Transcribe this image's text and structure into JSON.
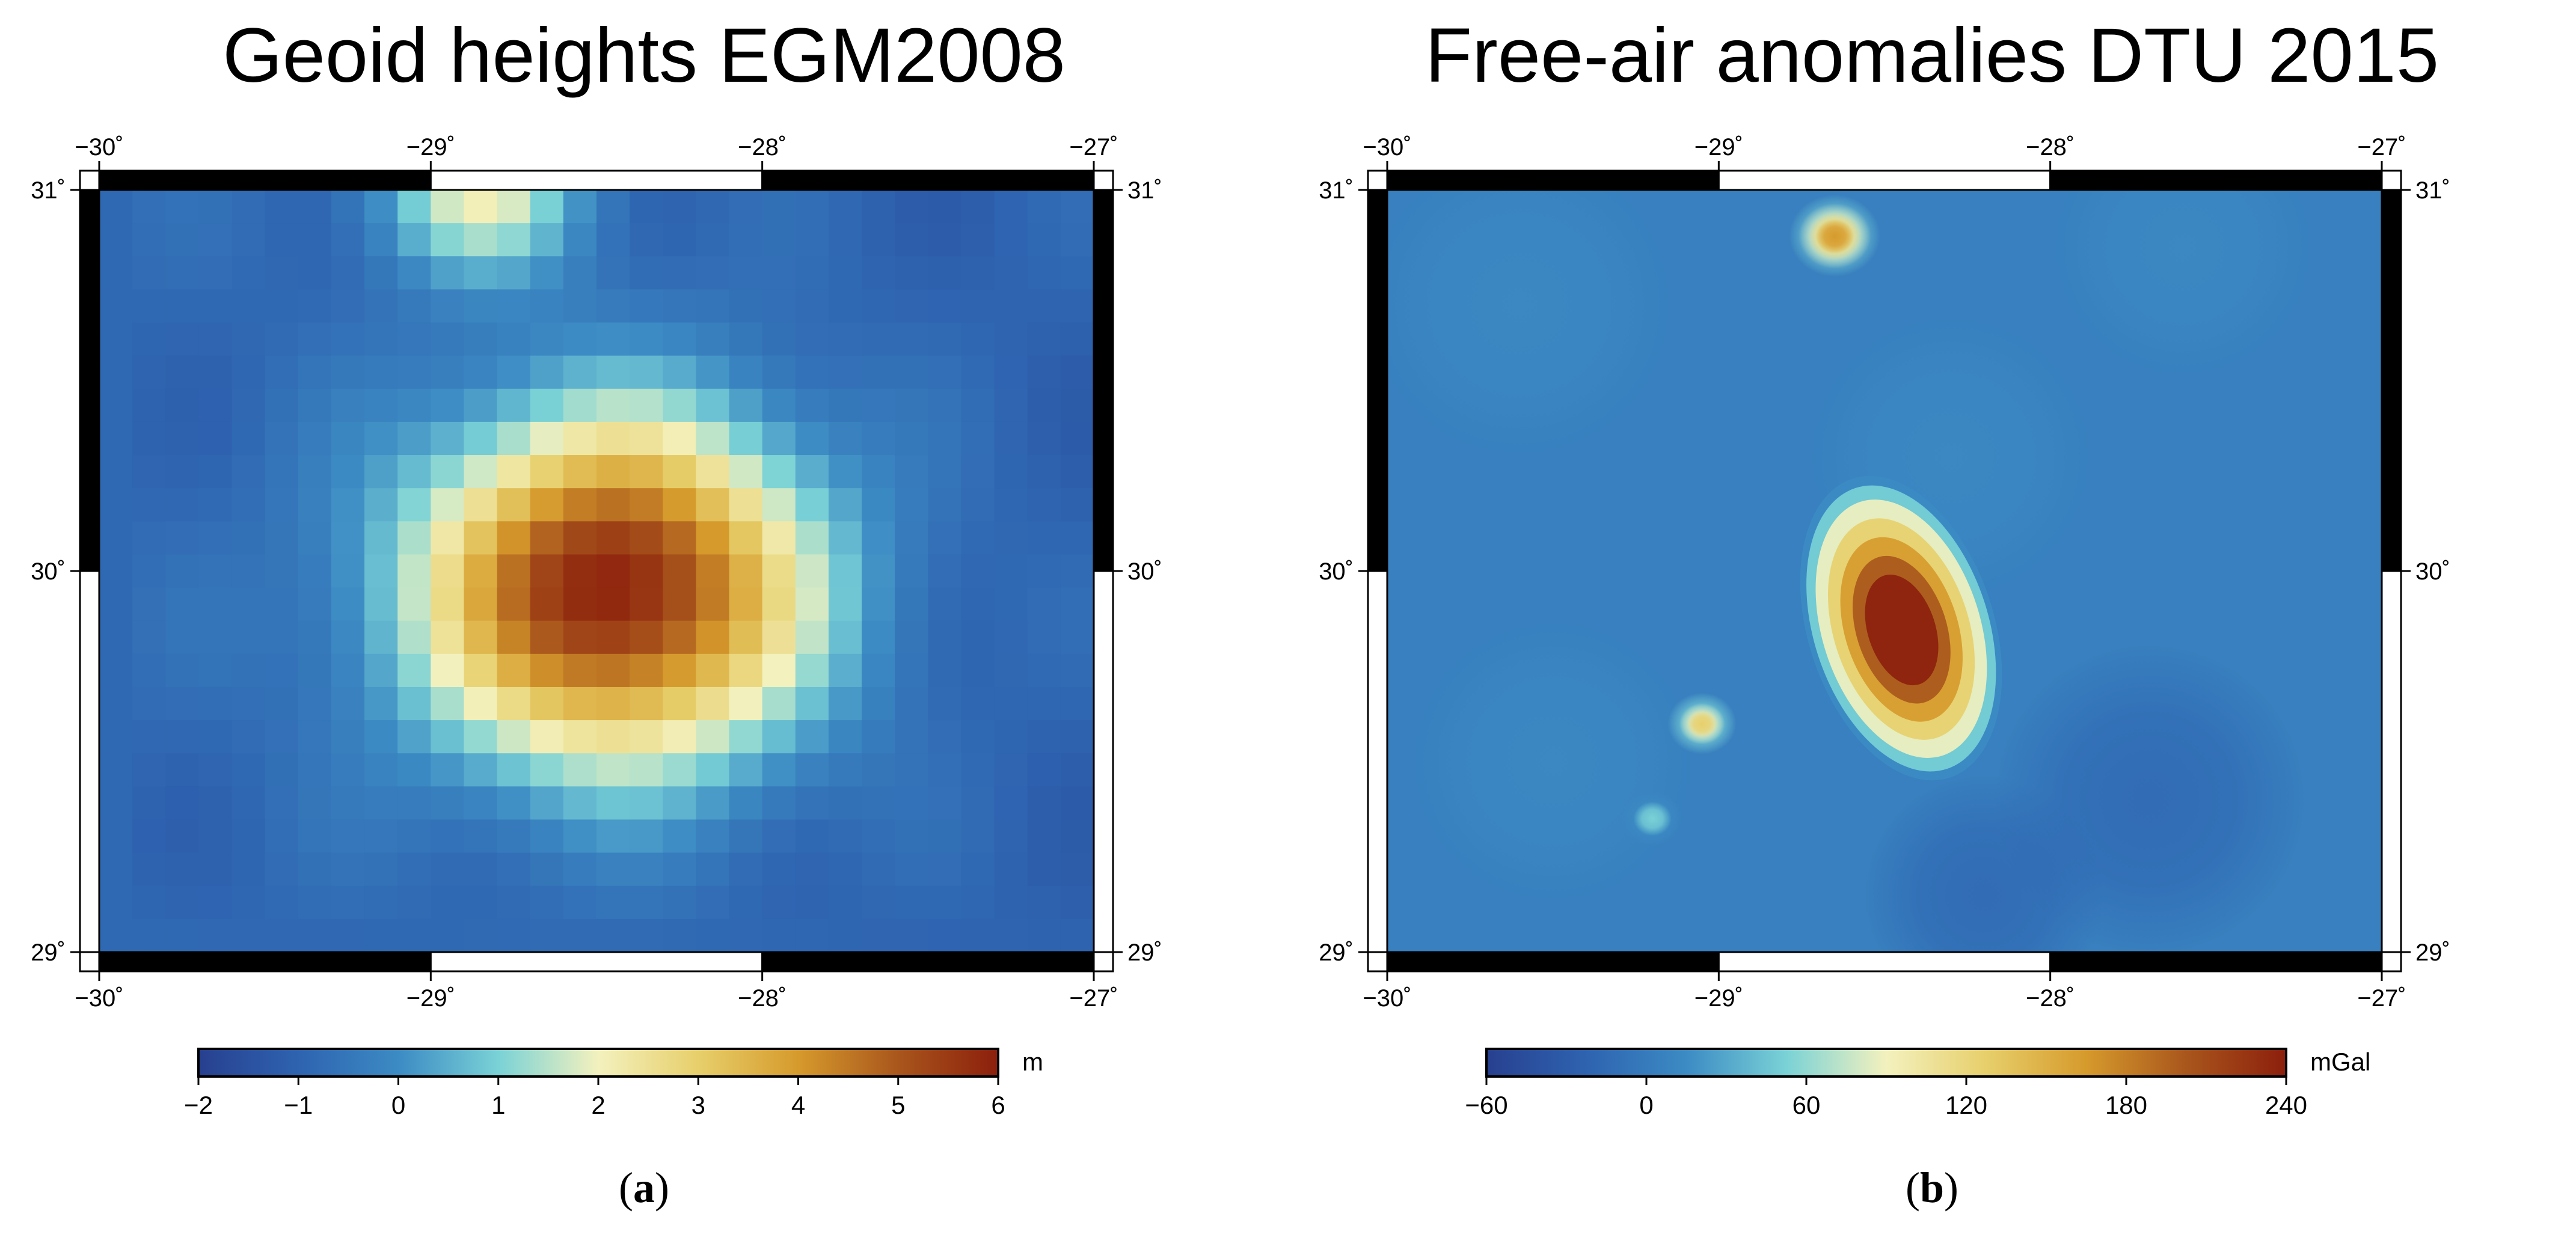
{
  "panels": [
    {
      "id": "a",
      "title": "Geoid heights EGM2008",
      "caption_letter": "a",
      "caption_open": "(",
      "caption_close": ")",
      "lon_ticks": [
        "−30˚",
        "−29˚",
        "−28˚",
        "−27˚"
      ],
      "lat_ticks": [
        "31˚",
        "30˚",
        "29˚"
      ],
      "colorbar": {
        "unit": "m",
        "min": -2,
        "max": 6,
        "tick_labels": [
          "−2",
          "−1",
          "0",
          "1",
          "2",
          "3",
          "4",
          "5",
          "6"
        ],
        "colors": [
          "#27408f",
          "#2e63b0",
          "#3c8bc4",
          "#7ad2d6",
          "#f3f1be",
          "#e7cf6b",
          "#d69a2c",
          "#a9561c",
          "#8c1f0c"
        ]
      },
      "field": {
        "style": "pixelated",
        "background": -1.0,
        "features": [
          {
            "name": "central geoid high",
            "lon": -28.45,
            "lat": 29.95,
            "peak_value": 6.0
          },
          {
            "name": "northern high",
            "lon": -28.85,
            "lat": 31.0,
            "peak_value": 1.8
          }
        ]
      }
    },
    {
      "id": "b",
      "title": "Free-air anomalies DTU 2015",
      "caption_letter": "b",
      "caption_open": "(",
      "caption_close": ")",
      "lon_ticks": [
        "−30˚",
        "−29˚",
        "−28˚",
        "−27˚"
      ],
      "lat_ticks": [
        "31˚",
        "30˚",
        "29˚"
      ],
      "colorbar": {
        "unit": "mGal",
        "min": -60,
        "max": 240,
        "tick_labels": [
          "−60",
          "0",
          "60",
          "120",
          "180",
          "240"
        ],
        "colors": [
          "#27408f",
          "#2e63b0",
          "#3c8bc4",
          "#7ad2d6",
          "#f3f1be",
          "#e7cf6b",
          "#d69a2c",
          "#a9561c",
          "#8c1f0c"
        ]
      },
      "field": {
        "style": "smooth",
        "background": 5,
        "features": [
          {
            "name": "main seamount anomaly",
            "lon": -28.45,
            "lat": 29.85,
            "peak_value": 240
          },
          {
            "name": "northern seamount anomaly",
            "lon": -28.65,
            "lat": 30.88,
            "peak_value": 160
          },
          {
            "name": "small western anomaly",
            "lon": -29.05,
            "lat": 29.6,
            "peak_value": 140
          },
          {
            "name": "small southwestern anomaly",
            "lon": -29.2,
            "lat": 29.35,
            "peak_value": 60
          }
        ]
      }
    }
  ]
}
